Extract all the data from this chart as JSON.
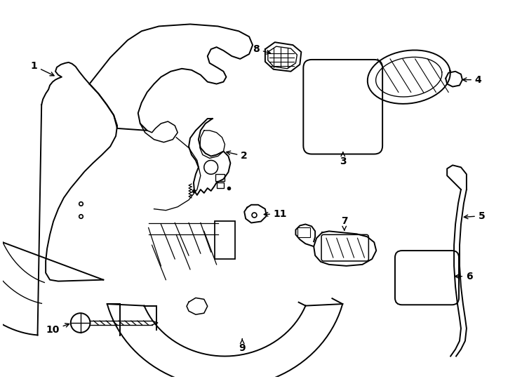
{
  "background_color": "#ffffff",
  "line_color": "#000000",
  "line_width": 1.4,
  "fig_w": 7.34,
  "fig_h": 5.4,
  "dpi": 100
}
